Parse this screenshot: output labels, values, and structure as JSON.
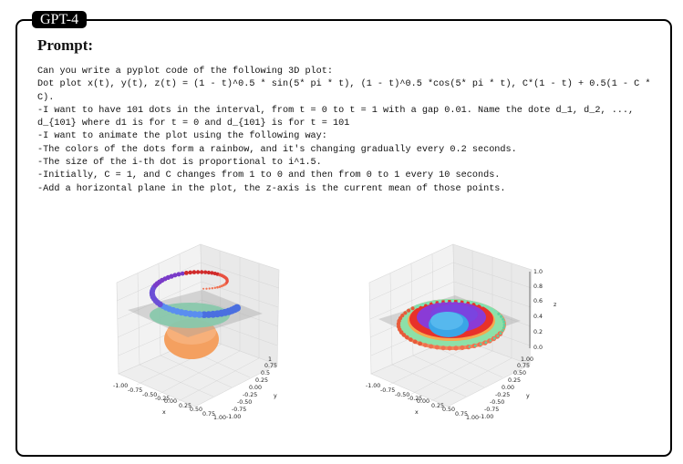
{
  "badge": "GPT-4",
  "section_title": "Prompt:",
  "prompt_lines": [
    "Can you write a pyplot code of the following 3D plot:",
    "Dot plot x(t), y(t), z(t) = (1 - t)^0.5 * sin(5* pi * t), (1 - t)^0.5 *cos(5* pi * t), C*(1 - t) + 0.5(1 - C * C).",
    "-I want to have 101 dots in the interval, from t = 0 to t = 1 with a gap 0.01. Name the dote d_1, d_2, ..., d_{101} where d1 is for t = 0 and d_{101} is for t = 101",
    "-I want to animate the plot using the following way:",
    "-The colors of the dots form a rainbow, and it's changing gradually every 0.2 seconds.",
    "-The size of the i-th dot is proportional to i^1.5.",
    "-Initially, C = 1, and C changes from 1 to 0 and then from 0 to 1 every 10 seconds.",
    "-Add a horizontal plane in the plot, the z-axis is the current mean of those points."
  ],
  "plots": [
    {
      "x_label": "x",
      "y_label": "y",
      "x_ticks": [
        "-1.00",
        "-0.75",
        "-0.50",
        "-0.25",
        "0.00",
        "0.25",
        "0.50",
        "0.75",
        "1.00"
      ],
      "y_ticks": [
        "-1.00",
        "-0.75",
        "-0.50",
        "-0.25",
        "0.00",
        "0.25",
        "0.5",
        "0.75",
        "1"
      ]
    },
    {
      "x_label": "x",
      "y_label": "y",
      "z_label": "z",
      "x_ticks": [
        "-1.00",
        "-0.75",
        "-0.50",
        "-0.25",
        "0.00",
        "0.25",
        "0.50",
        "0.75",
        "1.00"
      ],
      "y_ticks": [
        "-1.00",
        "-0.75",
        "-0.50",
        "-0.25",
        "0.00",
        "0.25",
        "0.50",
        "0.75",
        "1.00"
      ],
      "z_ticks": [
        "0.0",
        "0.2",
        "0.4",
        "0.6",
        "0.8",
        "1.0"
      ]
    }
  ]
}
